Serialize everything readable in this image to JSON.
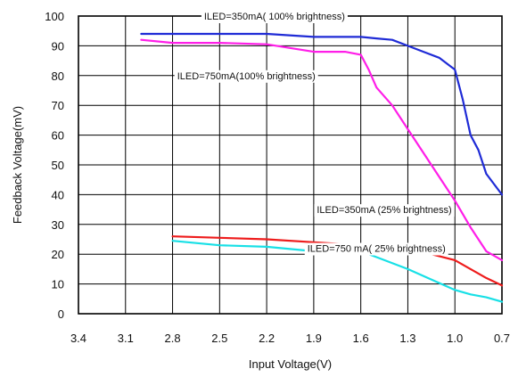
{
  "chart_data": {
    "type": "line",
    "xlabel": "Input Voltage(V)",
    "ylabel": "Feedback Voltage(mV)",
    "xlim": [
      3.4,
      0.7
    ],
    "ylim": [
      0,
      100
    ],
    "x_reversed": true,
    "x_ticks": [
      "3.4",
      "3.1",
      "2.8",
      "2.5",
      "2.2",
      "1.9",
      "1.6",
      "1.3",
      "1.0",
      "0.7"
    ],
    "y_ticks": [
      "0",
      "10",
      "20",
      "30",
      "40",
      "50",
      "60",
      "70",
      "80",
      "90",
      "100"
    ],
    "grid": true,
    "series": [
      {
        "color": "#1f2bd6",
        "x": [
          3.0,
          2.8,
          2.5,
          2.2,
          1.9,
          1.6,
          1.5,
          1.4,
          1.3,
          1.2,
          1.1,
          1.0,
          0.95,
          0.9,
          0.85,
          0.8,
          0.7
        ],
        "y": [
          94,
          94,
          94,
          94,
          93,
          93,
          92.5,
          92,
          90,
          88,
          86,
          82,
          72,
          60,
          55,
          47,
          40
        ]
      },
      {
        "color": "#ff1ee8",
        "x": [
          3.0,
          2.8,
          2.5,
          2.2,
          1.9,
          1.7,
          1.6,
          1.55,
          1.5,
          1.4,
          1.3,
          1.2,
          1.1,
          1.0,
          0.9,
          0.8,
          0.7
        ],
        "y": [
          92,
          91,
          91,
          90.5,
          88,
          88,
          87,
          82,
          76,
          70,
          62,
          54,
          46,
          38,
          29,
          21,
          18
        ]
      },
      {
        "color": "#ee1c1c",
        "x": [
          2.8,
          2.5,
          2.2,
          1.9,
          1.6,
          1.45,
          1.3,
          1.15,
          1.0,
          0.9,
          0.8,
          0.7
        ],
        "y": [
          26,
          25.5,
          25,
          24,
          23,
          23,
          21.5,
          20,
          18,
          15,
          12,
          9.5
        ]
      },
      {
        "color": "#18e0e6",
        "x": [
          2.8,
          2.5,
          2.2,
          1.9,
          1.6,
          1.5,
          1.3,
          1.15,
          1.0,
          0.9,
          0.8,
          0.7
        ],
        "y": [
          24.5,
          23,
          22.5,
          21,
          21,
          19,
          15,
          11.5,
          8,
          6.5,
          5.5,
          4
        ]
      }
    ],
    "annotations": [
      {
        "text": "ILED=350mA( 100% brightness)",
        "at_x": 2.15,
        "at_y": 100
      },
      {
        "text": "ILED=750mA(100% brightness)",
        "at_x": 2.33,
        "at_y": 80
      },
      {
        "text": "ILED=350mA (25% brightness)",
        "at_x": 1.45,
        "at_y": 35
      },
      {
        "text": "ILED=750 mA( 25% brightness)",
        "at_x": 1.5,
        "at_y": 22
      }
    ]
  }
}
